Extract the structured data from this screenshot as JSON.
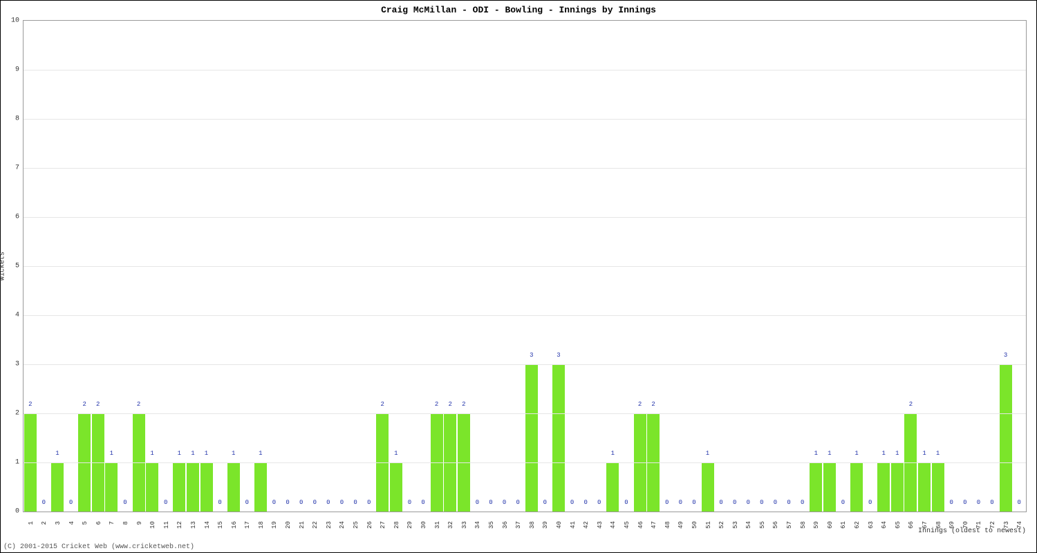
{
  "chart": {
    "type": "bar",
    "title": "Craig McMillan - ODI - Bowling - Innings by Innings",
    "title_fontsize": 13,
    "bar_color": "#7be52a",
    "value_label_color": "#2233aa",
    "grid_color": "#e6e6e6",
    "axis_color": "#999999",
    "background_color": "#ffffff",
    "border_color": "#000000",
    "value_label_fontsize": 9,
    "tick_label_fontsize": 10,
    "font_family": "Courier New, monospace",
    "y_axis": {
      "label": "Wickets",
      "min": 0,
      "max": 10,
      "tick_step": 1
    },
    "x_axis": {
      "label": "Innings (oldest to newest)"
    },
    "bar_width_ratio": 0.92,
    "values": [
      2,
      0,
      1,
      0,
      2,
      2,
      1,
      0,
      2,
      1,
      0,
      1,
      1,
      1,
      0,
      1,
      0,
      1,
      0,
      0,
      0,
      0,
      0,
      0,
      0,
      0,
      2,
      1,
      0,
      0,
      2,
      2,
      2,
      0,
      0,
      0,
      0,
      3,
      0,
      3,
      0,
      0,
      0,
      1,
      0,
      2,
      2,
      0,
      0,
      0,
      1,
      0,
      0,
      0,
      0,
      0,
      0,
      0,
      1,
      1,
      0,
      1,
      0,
      1,
      1,
      2,
      1,
      1,
      0,
      0,
      0,
      0,
      3,
      0
    ]
  },
  "copyright": "(C) 2001-2015 Cricket Web (www.cricketweb.net)"
}
